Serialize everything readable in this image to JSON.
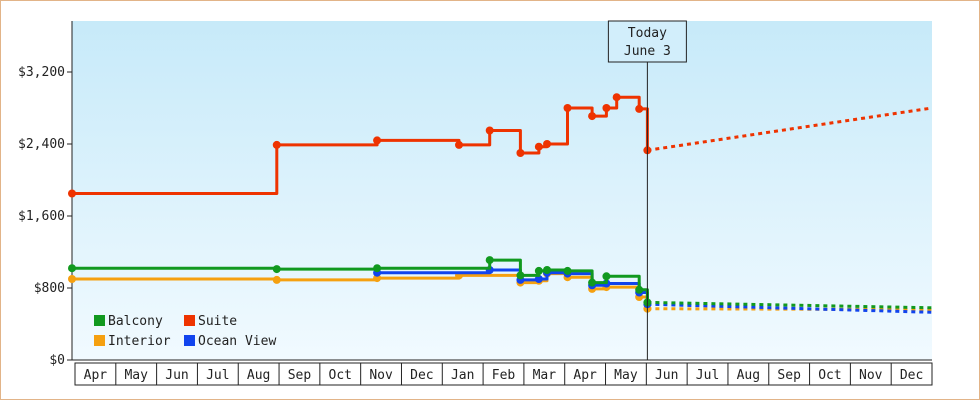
{
  "chart_data": {
    "type": "line",
    "title": "",
    "xlabel": "",
    "ylabel": "",
    "y_ticks": [
      "$0",
      "$800",
      "$1,600",
      "$2,400",
      "$3,200"
    ],
    "ylim": [
      0,
      3200
    ],
    "months": [
      "Apr",
      "May",
      "Jun",
      "Jul",
      "Aug",
      "Sep",
      "Oct",
      "Nov",
      "Dec",
      "Jan",
      "Feb",
      "Mar",
      "Apr",
      "May",
      "Jun",
      "Jul",
      "Aug",
      "Sep",
      "Oct",
      "Nov",
      "Dec"
    ],
    "grid": false,
    "legend_position": "bottom-left",
    "today_marker": {
      "line1": "Today",
      "line2": "June 3",
      "x": 14.05
    },
    "series": [
      {
        "name": "Suite",
        "color": "#ee3300",
        "points": [
          [
            0,
            1850
          ],
          [
            5.0,
            1850
          ],
          [
            5.0,
            2390
          ],
          [
            7.45,
            2390
          ],
          [
            7.45,
            2440
          ],
          [
            9.45,
            2440
          ],
          [
            9.45,
            2390
          ],
          [
            10.2,
            2390
          ],
          [
            10.2,
            2550
          ],
          [
            10.95,
            2550
          ],
          [
            10.95,
            2300
          ],
          [
            11.4,
            2300
          ],
          [
            11.4,
            2370
          ],
          [
            11.6,
            2370
          ],
          [
            11.6,
            2400
          ],
          [
            12.1,
            2400
          ],
          [
            12.1,
            2800
          ],
          [
            12.7,
            2800
          ],
          [
            12.7,
            2710
          ],
          [
            13.05,
            2710
          ],
          [
            13.05,
            2800
          ],
          [
            13.3,
            2800
          ],
          [
            13.3,
            2920
          ],
          [
            13.85,
            2920
          ],
          [
            13.85,
            2790
          ],
          [
            14.05,
            2790
          ],
          [
            14.05,
            2330
          ]
        ],
        "forecast": [
          [
            14.05,
            2330
          ],
          [
            21.0,
            2800
          ]
        ]
      },
      {
        "name": "Balcony",
        "color": "#11991f",
        "points": [
          [
            0,
            1020
          ],
          [
            5.0,
            1020
          ],
          [
            5.0,
            1010
          ],
          [
            7.45,
            1010
          ],
          [
            7.45,
            1020
          ],
          [
            10.2,
            1020
          ],
          [
            10.2,
            1110
          ],
          [
            10.95,
            1110
          ],
          [
            10.95,
            940
          ],
          [
            11.4,
            940
          ],
          [
            11.4,
            990
          ],
          [
            11.6,
            990
          ],
          [
            11.6,
            1000
          ],
          [
            12.1,
            1000
          ],
          [
            12.1,
            990
          ],
          [
            12.7,
            990
          ],
          [
            12.7,
            860
          ],
          [
            13.05,
            860
          ],
          [
            13.05,
            930
          ],
          [
            13.85,
            930
          ],
          [
            13.85,
            780
          ],
          [
            14.05,
            780
          ],
          [
            14.05,
            640
          ]
        ],
        "forecast": [
          [
            14.05,
            640
          ],
          [
            21.0,
            580
          ]
        ]
      },
      {
        "name": "Interior",
        "color": "#f5a010",
        "points": [
          [
            0,
            900
          ],
          [
            5.0,
            900
          ],
          [
            5.0,
            890
          ],
          [
            7.45,
            890
          ],
          [
            7.45,
            910
          ],
          [
            9.45,
            910
          ],
          [
            9.45,
            940
          ],
          [
            10.95,
            940
          ],
          [
            10.95,
            860
          ],
          [
            11.4,
            860
          ],
          [
            11.4,
            880
          ],
          [
            11.6,
            880
          ],
          [
            11.6,
            960
          ],
          [
            12.1,
            960
          ],
          [
            12.1,
            920
          ],
          [
            12.7,
            920
          ],
          [
            12.7,
            790
          ],
          [
            13.05,
            790
          ],
          [
            13.05,
            810
          ],
          [
            13.85,
            810
          ],
          [
            13.85,
            700
          ],
          [
            14.05,
            700
          ],
          [
            14.05,
            570
          ]
        ],
        "forecast": [
          [
            14.05,
            570
          ],
          [
            21.0,
            560
          ]
        ]
      },
      {
        "name": "Ocean View",
        "color": "#1144ee",
        "points": [
          [
            7.45,
            970
          ],
          [
            10.2,
            970
          ],
          [
            10.2,
            1000
          ],
          [
            10.95,
            1000
          ],
          [
            10.95,
            890
          ],
          [
            11.4,
            890
          ],
          [
            11.4,
            900
          ],
          [
            11.6,
            900
          ],
          [
            11.6,
            970
          ],
          [
            12.1,
            970
          ],
          [
            12.1,
            960
          ],
          [
            12.7,
            960
          ],
          [
            12.7,
            830
          ],
          [
            13.05,
            830
          ],
          [
            13.05,
            850
          ],
          [
            13.85,
            850
          ],
          [
            13.85,
            750
          ],
          [
            14.05,
            750
          ],
          [
            14.05,
            620
          ]
        ],
        "forecast": [
          [
            14.05,
            620
          ],
          [
            21.0,
            530
          ]
        ]
      }
    ],
    "legend": [
      {
        "name": "Balcony",
        "color": "#11991f"
      },
      {
        "name": "Suite",
        "color": "#ee3300"
      },
      {
        "name": "Interior",
        "color": "#f5a010"
      },
      {
        "name": "Ocean View",
        "color": "#1144ee"
      }
    ]
  }
}
